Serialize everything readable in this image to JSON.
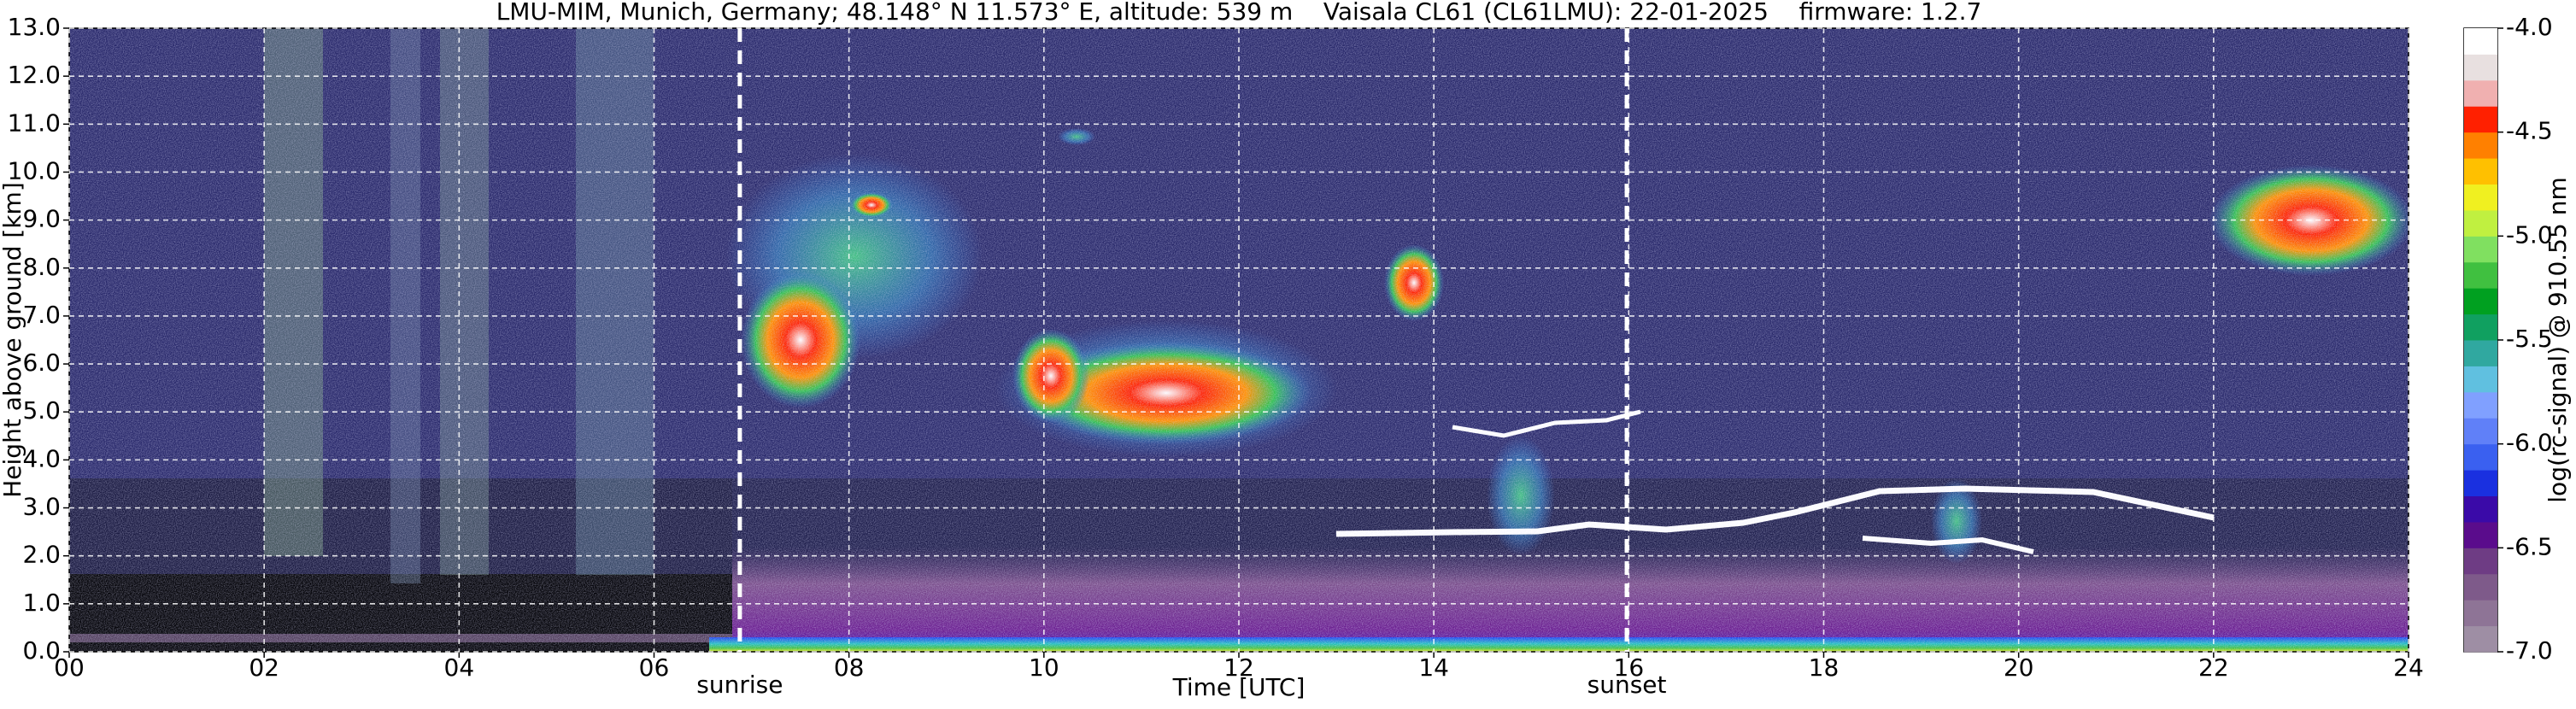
{
  "chart_data": {
    "type": "heatmap",
    "title": "LMU-MIM, Munich, Germany; 48.148° N 11.573° E, altitude: 539 m    Vaisala CL61 (CL61LMU): 22-01-2025    firmware: 1.2.7",
    "xlabel": "Time [UTC]",
    "ylabel": "Height above ground [km]",
    "xlim": [
      0,
      24
    ],
    "xticks": [
      {
        "value": 0,
        "label": "00"
      },
      {
        "value": 2,
        "label": "02"
      },
      {
        "value": 4,
        "label": "04"
      },
      {
        "value": 6,
        "label": "06"
      },
      {
        "value": 8,
        "label": "08"
      },
      10,
      12,
      14,
      16,
      18,
      20,
      22,
      24
    ],
    "ylim": [
      0,
      13
    ],
    "yticks": [
      {
        "value": 0,
        "label": "0.0"
      },
      {
        "value": 1,
        "label": "1.0"
      },
      {
        "value": 2,
        "label": "2.0"
      },
      {
        "value": 3,
        "label": "3.0"
      },
      {
        "value": 4,
        "label": "4.0"
      },
      {
        "value": 5,
        "label": "5.0"
      },
      {
        "value": 6,
        "label": "6.0"
      },
      {
        "value": 7,
        "label": "7.0"
      },
      {
        "value": 8,
        "label": "8.0"
      },
      {
        "value": 9,
        "label": "9.0"
      },
      {
        "value": 10,
        "label": "10.0"
      },
      {
        "value": 11,
        "label": "11.0"
      },
      {
        "value": 12,
        "label": "12.0"
      },
      {
        "value": 13,
        "label": "13.0"
      }
    ],
    "grid": true,
    "annotations": [
      {
        "text": "sunrise",
        "x": 6.88
      },
      {
        "text": "sunset",
        "x": 15.98
      }
    ],
    "colorbar": {
      "label": "log(rc-signal) @ 910.55 nm",
      "clim": [
        -7,
        -4
      ],
      "ticks": [
        {
          "value": -4,
          "label": "-4.0"
        },
        -4.5,
        {
          "value": -5,
          "label": "-5.0"
        },
        -5.5,
        {
          "value": -6,
          "label": "-6.0"
        },
        -6.5,
        {
          "value": -7,
          "label": "-7.0"
        }
      ],
      "colors": [
        "#9e8ea4",
        "#8e7496",
        "#7e5a8a",
        "#6e3c84",
        "#5a0c8c",
        "#3a0aa8",
        "#1a30e0",
        "#3a60f0",
        "#6080f8",
        "#80a0ff",
        "#60c0e0",
        "#30a8a0",
        "#10a060",
        "#00a020",
        "#40c040",
        "#80e060",
        "#c0f040",
        "#f0f020",
        "#ffc000",
        "#ff8000",
        "#ff2000",
        "#f0b0b0",
        "#e8e0e0",
        "#ffffff"
      ]
    }
  }
}
